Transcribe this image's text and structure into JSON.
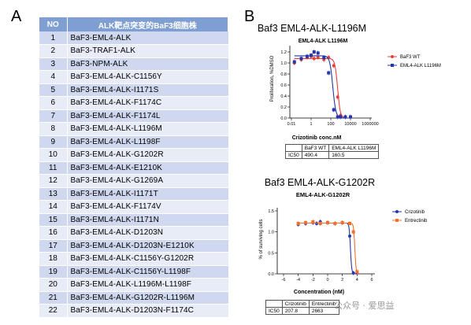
{
  "panel_a_label": "A",
  "panel_b_label": "B",
  "table": {
    "headers": [
      "NO",
      "ALK靶点突变的BaF3细胞株"
    ],
    "rows": [
      [
        "1",
        "BaF3-EML4-ALK"
      ],
      [
        "2",
        "BaF3-TRAF1-ALK"
      ],
      [
        "3",
        "BaF3-NPM-ALK"
      ],
      [
        "4",
        "BaF3-EML4-ALK-C1156Y"
      ],
      [
        "5",
        "BaF3-EML4-ALK-I1171S"
      ],
      [
        "6",
        "BaF3-EML4-ALK-F1174C"
      ],
      [
        "7",
        "BaF3-EML4-ALK-F1174L"
      ],
      [
        "8",
        "BaF3-EML4-ALK-L1196M"
      ],
      [
        "9",
        "BaF3-EML4-ALK-L1198F"
      ],
      [
        "10",
        "BaF3-EML4-ALK-G1202R"
      ],
      [
        "11",
        "BaF3-EML4-ALK-E1210K"
      ],
      [
        "12",
        "BaF3-EML4-ALK-G1269A"
      ],
      [
        "13",
        "BaF3-EML4-ALK-I1171T"
      ],
      [
        "14",
        "BaF3-EML4-ALK-F1174V"
      ],
      [
        "15",
        "BaF3-EML4-ALK-I1171N"
      ],
      [
        "16",
        "BaF3-EML4-ALK-D1203N"
      ],
      [
        "17",
        "BaF3-EML4-ALK-D1203N-E1210K"
      ],
      [
        "18",
        "BaF3-EML4-ALK-C1156Y-G1202R"
      ],
      [
        "19",
        "BaF3-EML4-ALK-C1156Y-L1198F"
      ],
      [
        "20",
        "BaF3-EML4-ALK-L1196M-L1198F"
      ],
      [
        "21",
        "BaF3-EML4-ALK-G1202R-L1196M"
      ],
      [
        "22",
        "BaF3-EML4-ALK-D1203N-F1174C"
      ]
    ]
  },
  "chart_data": [
    {
      "type": "line",
      "heading": "Baf3 EML4-ALK-L1196M",
      "title": "EML4-ALK L1196M",
      "xlabel": "Crizotinib conc.nM",
      "ylabel": "Proliferation, %DMSO",
      "x_scale": "log",
      "x_ticks": [
        "0.01",
        "1",
        "100",
        "10000",
        "1000000"
      ],
      "xlim": [
        0.01,
        1000000
      ],
      "y_ticks": [
        "0.0",
        "0.2",
        "0.4",
        "0.6",
        "0.8",
        "1.0",
        "1.2"
      ],
      "ylim": [
        0,
        1.2
      ],
      "legend_position": "right",
      "series": [
        {
          "name": "BaF3 WT",
          "color": "#e8403a",
          "marker": "circle",
          "ic50": 490.4,
          "x": [
            0.02,
            0.1,
            0.4,
            1,
            2,
            5,
            20,
            60,
            200,
            500,
            1000,
            3000,
            10000
          ],
          "y": [
            1.0,
            1.06,
            1.1,
            1.12,
            1.08,
            1.1,
            1.06,
            1.1,
            0.95,
            0.38,
            0.05,
            0.02,
            0.02
          ]
        },
        {
          "name": "EML4-ALK L1196M",
          "color": "#2536a8",
          "marker": "square",
          "ic50": 160.5,
          "x": [
            0.02,
            0.1,
            0.4,
            1,
            2,
            5,
            20,
            60,
            200,
            500,
            1000,
            3000,
            10000
          ],
          "y": [
            1.02,
            1.08,
            1.12,
            1.14,
            1.2,
            1.18,
            1.1,
            0.82,
            0.15,
            0.02,
            0.02,
            0.02,
            0.02
          ]
        }
      ],
      "ic50_table": {
        "header": [
          "",
          "BaF3 WT",
          "EML4-ALK L1196M"
        ],
        "row": [
          "IC50",
          "490.4",
          "160.5"
        ]
      }
    },
    {
      "type": "line",
      "heading": "Baf3 EML4-ALK-G1202R",
      "title": "EML4-ALK-G1202R",
      "xlabel": "Concentration (nM)",
      "ylabel": "% of surviving cells",
      "x_ticks": [
        "-6",
        "-4",
        "-2",
        "0",
        "2",
        "4",
        "6"
      ],
      "xlim": [
        -6,
        6
      ],
      "y_ticks": [
        "0.0",
        "0.5",
        "1.0",
        "1.5"
      ],
      "ylim": [
        0,
        1.5
      ],
      "legend_position": "right",
      "series": [
        {
          "name": "Crizotinib",
          "color": "#2536a8",
          "marker": "circle",
          "ic50": 207.8,
          "x": [
            -4,
            -3,
            -2,
            -1.5,
            -1,
            0,
            1,
            2,
            3,
            3.5,
            4
          ],
          "y": [
            1.18,
            1.2,
            1.22,
            1.2,
            1.24,
            1.22,
            1.2,
            1.22,
            0.9,
            0.02,
            0.02
          ]
        },
        {
          "name": "Entrectinib",
          "color": "#f07030",
          "marker": "square",
          "ic50": 2663,
          "x": [
            -4,
            -3,
            -2,
            -1,
            0,
            1,
            2,
            3,
            3.5,
            4
          ],
          "y": [
            1.2,
            1.22,
            1.24,
            1.2,
            1.22,
            1.2,
            1.22,
            1.2,
            1.0,
            0.05
          ]
        }
      ],
      "ic50_table": {
        "header": [
          "",
          "Crizotinib",
          "Entrectinib"
        ],
        "row": [
          "IC50",
          "207.8",
          "2663"
        ]
      }
    }
  ],
  "watermark": "公众号 · 爱思益"
}
